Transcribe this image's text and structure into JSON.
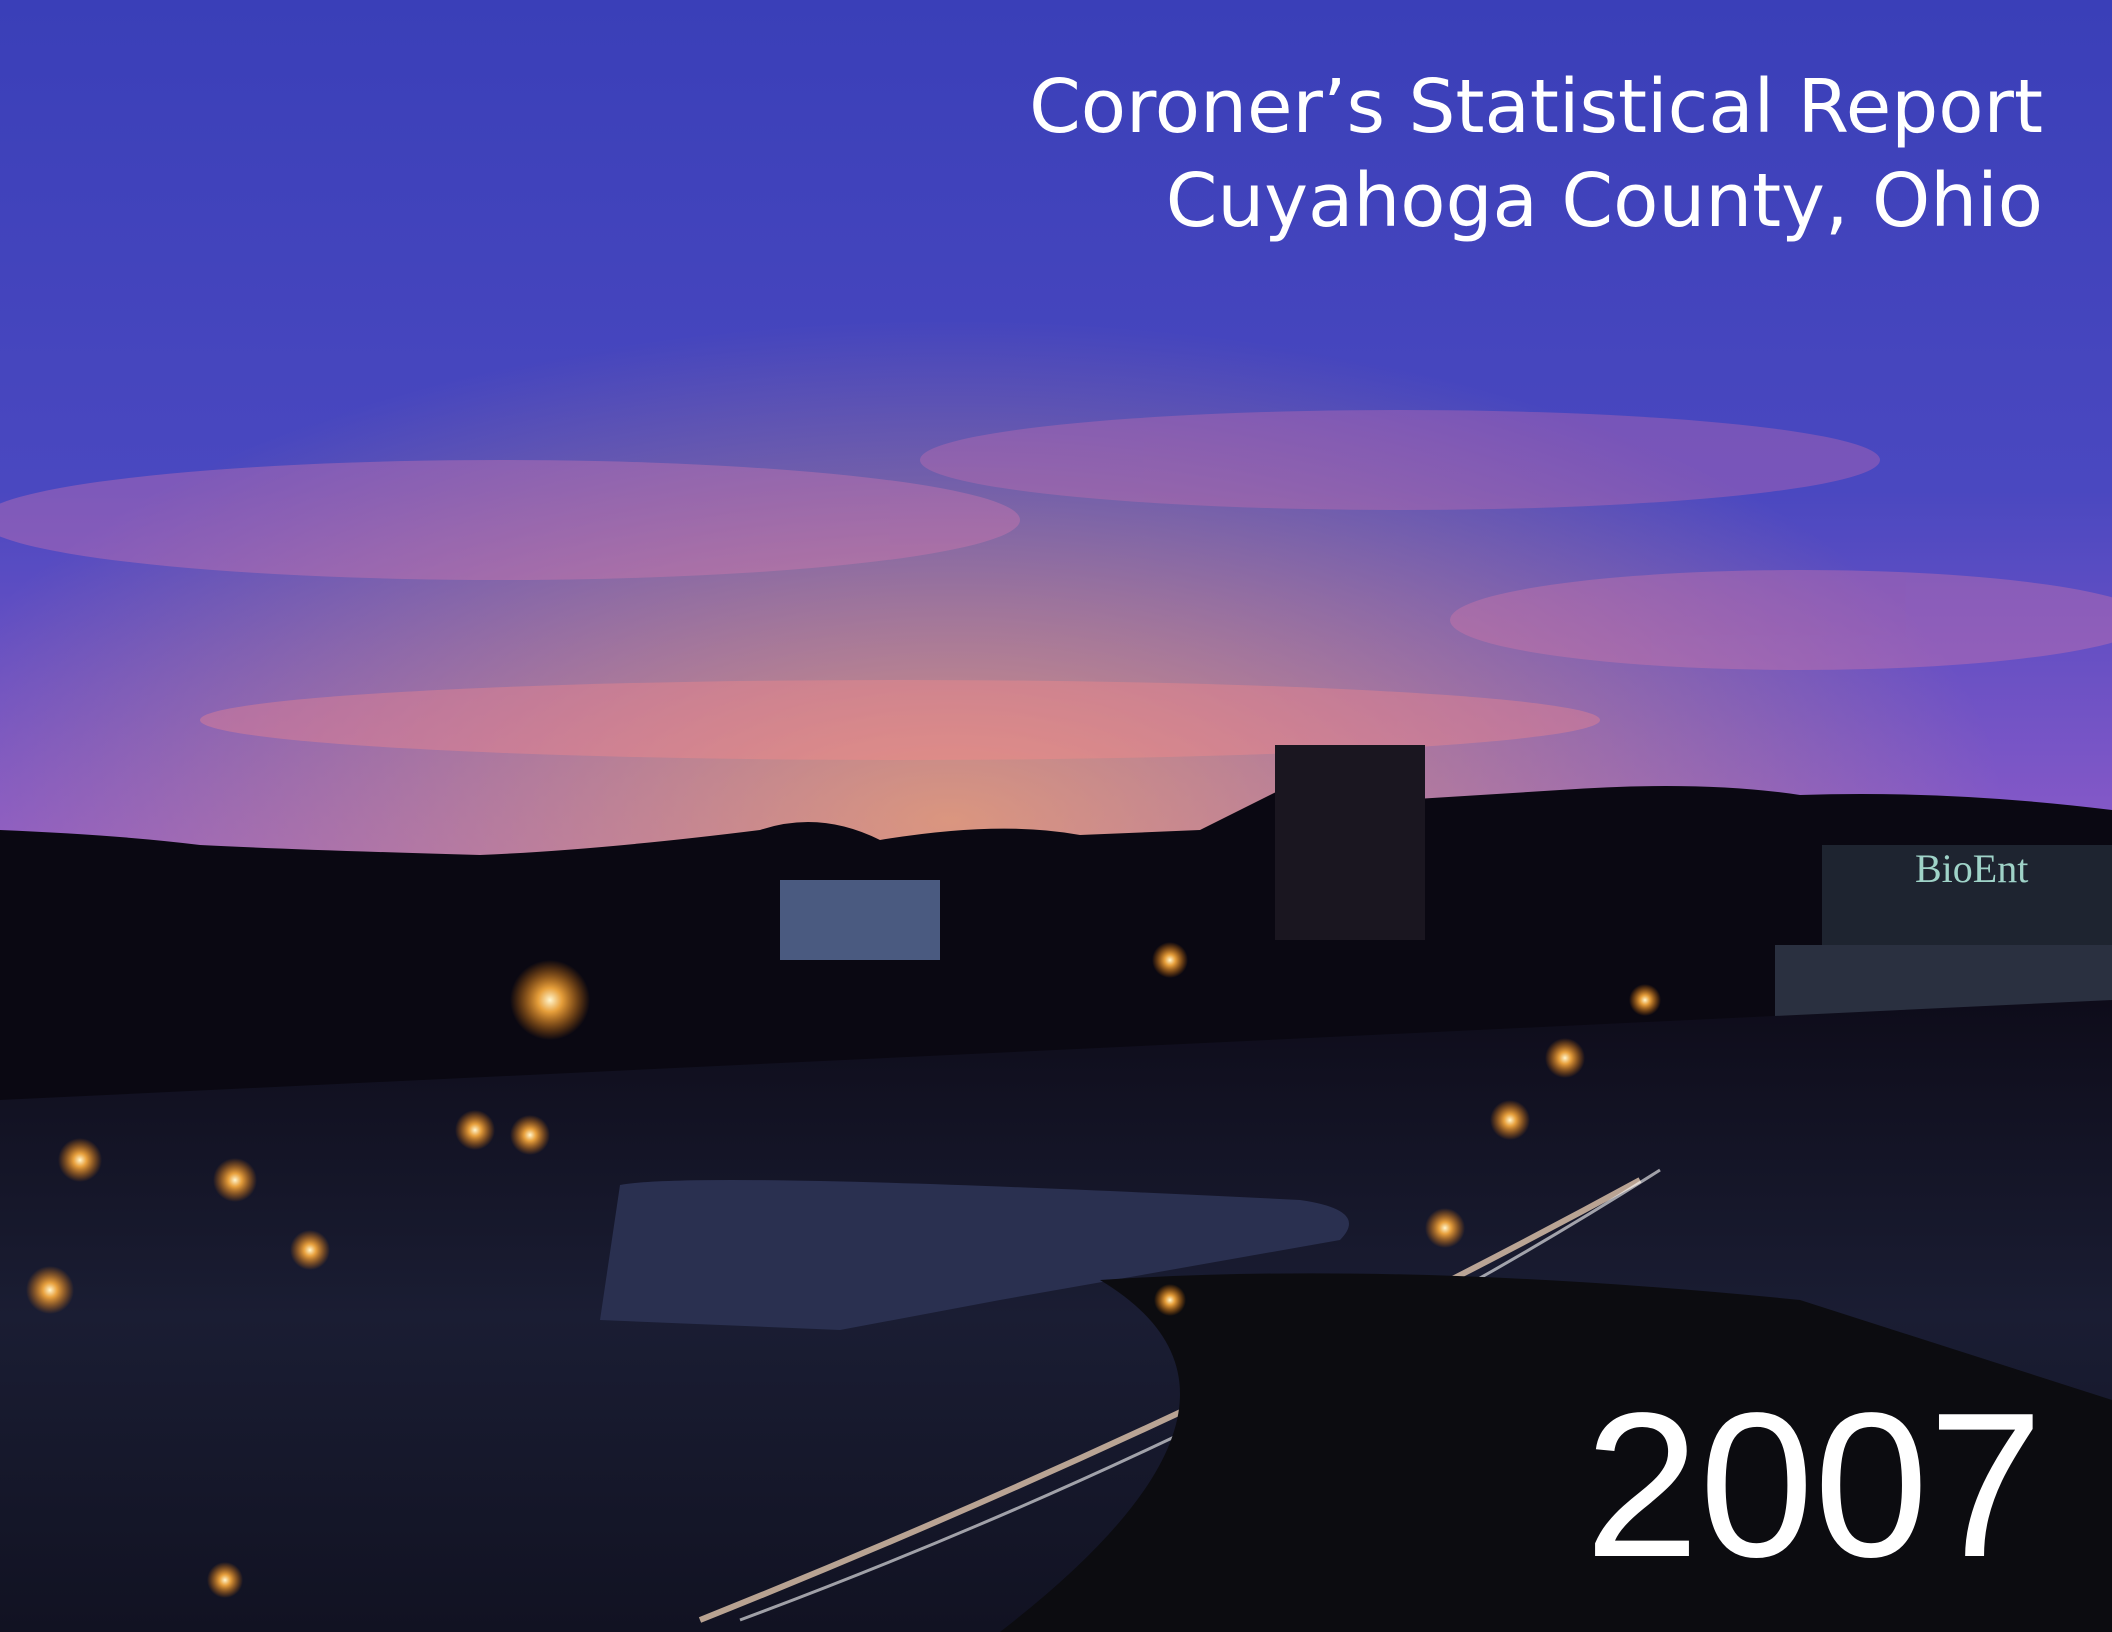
{
  "header": {
    "title": "Coroner’s Statistical Report",
    "subtitle": "Cuyahoga County, Ohio",
    "year": "2007"
  },
  "photo": {
    "sign": "BioEnt"
  }
}
